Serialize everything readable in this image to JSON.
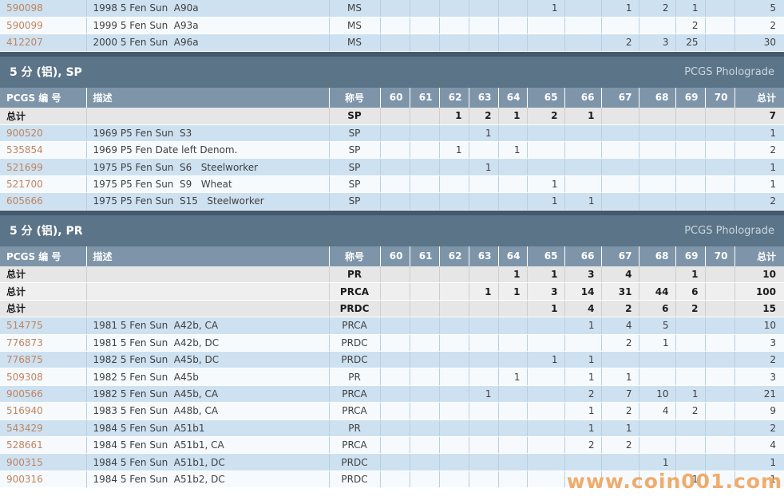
{
  "watermark": {
    "text": "www.coin001.com",
    "color": "#eea55f"
  },
  "header_labels": {
    "number": "PCGS 编 号",
    "desc": "描述",
    "designation": "称号",
    "total": "总计"
  },
  "grade_columns": [
    "60",
    "61",
    "62",
    "63",
    "64",
    "65",
    "66",
    "67",
    "68",
    "69",
    "70"
  ],
  "pre_rows": [
    {
      "type": "data",
      "number": "590098",
      "desc": "1998 5 Fen Sun  A90a",
      "desig": "MS",
      "grades": [
        "",
        "",
        "",
        "",
        "",
        "1",
        "",
        "1",
        "2",
        "1",
        ""
      ],
      "total": "5"
    },
    {
      "type": "data",
      "number": "590099",
      "desc": "1999 5 Fen Sun  A93a",
      "desig": "MS",
      "grades": [
        "",
        "",
        "",
        "",
        "",
        "",
        "",
        "",
        "",
        "2",
        ""
      ],
      "total": "2"
    },
    {
      "type": "data",
      "number": "412207",
      "desc": "2000 5 Fen Sun  A96a",
      "desig": "MS",
      "grades": [
        "",
        "",
        "",
        "",
        "",
        "",
        "",
        "2",
        "3",
        "25",
        ""
      ],
      "total": "30"
    }
  ],
  "sections": [
    {
      "title": "5 分 (铝), SP",
      "right_label": "PCGS Pholograde",
      "rows": [
        {
          "type": "total",
          "label": "总计",
          "desc": "",
          "desig": "SP",
          "grades": [
            "",
            "",
            "1",
            "2",
            "1",
            "2",
            "1",
            "",
            "",
            "",
            ""
          ],
          "total": "7"
        },
        {
          "type": "data",
          "number": "900520",
          "desc": "1969 P5 Fen Sun  S3",
          "desig": "SP",
          "grades": [
            "",
            "",
            "",
            "1",
            "",
            "",
            "",
            "",
            "",
            "",
            ""
          ],
          "total": "1"
        },
        {
          "type": "data",
          "number": "535854",
          "desc": "1969 P5 Fen Date left Denom.",
          "desig": "SP",
          "grades": [
            "",
            "",
            "1",
            "",
            "1",
            "",
            "",
            "",
            "",
            "",
            ""
          ],
          "total": "2"
        },
        {
          "type": "data",
          "number": "521699",
          "desc": "1975 P5 Fen Sun  S6   Steelworker",
          "desig": "SP",
          "grades": [
            "",
            "",
            "",
            "1",
            "",
            "",
            "",
            "",
            "",
            "",
            ""
          ],
          "total": "1"
        },
        {
          "type": "data",
          "number": "521700",
          "desc": "1975 P5 Fen Sun  S9   Wheat",
          "desig": "SP",
          "grades": [
            "",
            "",
            "",
            "",
            "",
            "1",
            "",
            "",
            "",
            "",
            ""
          ],
          "total": "1"
        },
        {
          "type": "data",
          "number": "605666",
          "desc": "1975 P5 Fen Sun  S15   Steelworker",
          "desig": "SP",
          "grades": [
            "",
            "",
            "",
            "",
            "",
            "1",
            "1",
            "",
            "",
            "",
            ""
          ],
          "total": "2"
        }
      ]
    },
    {
      "title": "5 分 (铝), PR",
      "right_label": "PCGS Pholograde",
      "rows": [
        {
          "type": "total",
          "label": "总计",
          "desc": "",
          "desig": "PR",
          "grades": [
            "",
            "",
            "",
            "",
            "1",
            "1",
            "3",
            "4",
            "",
            "1",
            ""
          ],
          "total": "10"
        },
        {
          "type": "total",
          "label": "总计",
          "desc": "",
          "desig": "PRCA",
          "grades": [
            "",
            "",
            "",
            "1",
            "1",
            "3",
            "14",
            "31",
            "44",
            "6",
            ""
          ],
          "total": "100"
        },
        {
          "type": "total",
          "label": "总计",
          "desc": "",
          "desig": "PRDC",
          "grades": [
            "",
            "",
            "",
            "",
            "",
            "1",
            "4",
            "2",
            "6",
            "2",
            ""
          ],
          "total": "15"
        },
        {
          "type": "data",
          "number": "514775",
          "desc": "1981 5 Fen Sun  A42b, CA",
          "desig": "PRCA",
          "grades": [
            "",
            "",
            "",
            "",
            "",
            "",
            "1",
            "4",
            "5",
            "",
            ""
          ],
          "total": "10"
        },
        {
          "type": "data",
          "number": "776873",
          "desc": "1981 5 Fen Sun  A42b, DC",
          "desig": "PRDC",
          "grades": [
            "",
            "",
            "",
            "",
            "",
            "",
            "",
            "2",
            "1",
            "",
            ""
          ],
          "total": "3"
        },
        {
          "type": "data",
          "number": "776875",
          "desc": "1982 5 Fen Sun  A45b, DC",
          "desig": "PRDC",
          "grades": [
            "",
            "",
            "",
            "",
            "",
            "1",
            "1",
            "",
            "",
            "",
            ""
          ],
          "total": "2"
        },
        {
          "type": "data",
          "number": "509308",
          "desc": "1982 5 Fen Sun  A45b",
          "desig": "PR",
          "grades": [
            "",
            "",
            "",
            "",
            "1",
            "",
            "1",
            "1",
            "",
            "",
            ""
          ],
          "total": "3"
        },
        {
          "type": "data",
          "number": "900566",
          "desc": "1982 5 Fen Sun  A45b, CA",
          "desig": "PRCA",
          "grades": [
            "",
            "",
            "",
            "1",
            "",
            "",
            "2",
            "7",
            "10",
            "1",
            ""
          ],
          "total": "21"
        },
        {
          "type": "data",
          "number": "516940",
          "desc": "1983 5 Fen Sun  A48b, CA",
          "desig": "PRCA",
          "grades": [
            "",
            "",
            "",
            "",
            "",
            "",
            "1",
            "2",
            "4",
            "2",
            ""
          ],
          "total": "9"
        },
        {
          "type": "data",
          "number": "543429",
          "desc": "1984 5 Fen Sun  A51b1",
          "desig": "PR",
          "grades": [
            "",
            "",
            "",
            "",
            "",
            "",
            "1",
            "1",
            "",
            "",
            ""
          ],
          "total": "2"
        },
        {
          "type": "data",
          "number": "528661",
          "desc": "1984 5 Fen Sun  A51b1, CA",
          "desig": "PRCA",
          "grades": [
            "",
            "",
            "",
            "",
            "",
            "",
            "2",
            "2",
            "",
            "",
            ""
          ],
          "total": "4"
        },
        {
          "type": "data",
          "number": "900315",
          "desc": "1984 5 Fen Sun  A51b1, DC",
          "desig": "PRDC",
          "grades": [
            "",
            "",
            "",
            "",
            "",
            "",
            "",
            "",
            "1",
            "",
            ""
          ],
          "total": "1"
        },
        {
          "type": "data",
          "number": "900316",
          "desc": "1984 5 Fen Sun  A51b2, DC",
          "desig": "PRDC",
          "grades": [
            "",
            "",
            "",
            "",
            "",
            "",
            "",
            "",
            "",
            "1",
            ""
          ],
          "total": "1"
        }
      ]
    }
  ],
  "colors": {
    "accent_link": "#c08460",
    "section_header_bg": "#5c7487",
    "section_header_strip": "#44596d",
    "table_header_bg": "#7e95a9",
    "row_blue": "#cde1f1",
    "row_white": "#f6fafc",
    "row_total_gray": "#e6e6e6",
    "watermark_orange": "#eea55f"
  }
}
